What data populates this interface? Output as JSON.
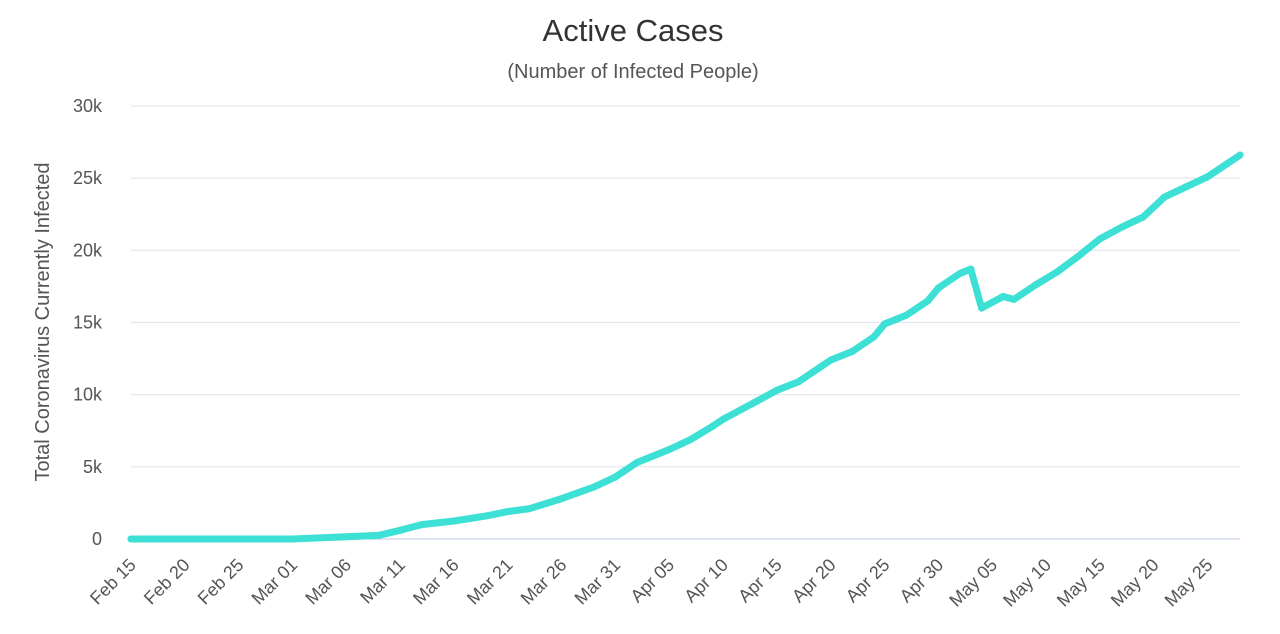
{
  "chart_data": {
    "type": "line",
    "title": "Active Cases",
    "subtitle": "(Number of Infected People)",
    "ylabel": "Total Coronavirus Currently Infected",
    "xlabel": "",
    "ylim": [
      0,
      30000
    ],
    "yticks": [
      {
        "value": 0,
        "label": "0"
      },
      {
        "value": 5000,
        "label": "5k"
      },
      {
        "value": 10000,
        "label": "10k"
      },
      {
        "value": 15000,
        "label": "15k"
      },
      {
        "value": 20000,
        "label": "20k"
      },
      {
        "value": 25000,
        "label": "25k"
      },
      {
        "value": 30000,
        "label": "30k"
      }
    ],
    "grid": true,
    "line_color": "#3de0d4",
    "x_tick_labels": [
      "Feb 15",
      "Feb 20",
      "Feb 25",
      "Mar 01",
      "Mar 06",
      "Mar 11",
      "Mar 16",
      "Mar 21",
      "Mar 26",
      "Mar 31",
      "Apr 05",
      "Apr 10",
      "Apr 15",
      "Apr 20",
      "Apr 25",
      "Apr 30",
      "May 05",
      "May 10",
      "May 15",
      "May 20",
      "May 25"
    ],
    "x_start": "Feb 15",
    "x_end": "May 28",
    "series": [
      {
        "x": [
          "Feb 15",
          "Feb 20",
          "Feb 25",
          "Mar 01",
          "Mar 06",
          "Mar 09",
          "Mar 11",
          "Mar 13",
          "Mar 16",
          "Mar 19",
          "Mar 21",
          "Mar 23",
          "Mar 26",
          "Mar 29",
          "Mar 31",
          "Apr 02",
          "Apr 05",
          "Apr 07",
          "Apr 09",
          "Apr 10",
          "Apr 12",
          "Apr 15",
          "Apr 17",
          "Apr 19",
          "Apr 20",
          "Apr 22",
          "Apr 24",
          "Apr 25",
          "Apr 27",
          "Apr 29",
          "Apr 30",
          "May 02",
          "May 03",
          "May 04",
          "May 06",
          "May 07",
          "May 09",
          "May 11",
          "May 13",
          "May 15",
          "May 17",
          "May 19",
          "May 21",
          "May 23",
          "May 25",
          "May 27",
          "May 28"
        ],
        "y": [
          0,
          0,
          0,
          0,
          150,
          250,
          600,
          1000,
          1250,
          1600,
          1900,
          2100,
          2800,
          3600,
          4300,
          5300,
          6200,
          6900,
          7800,
          8300,
          9100,
          10300,
          10900,
          11900,
          12400,
          13000,
          14000,
          14900,
          15500,
          16500,
          17400,
          18400,
          18700,
          16000,
          16800,
          16600,
          17600,
          18500,
          19600,
          20800,
          21600,
          22300,
          23700,
          24400,
          25100,
          26100,
          26600
        ]
      }
    ]
  }
}
